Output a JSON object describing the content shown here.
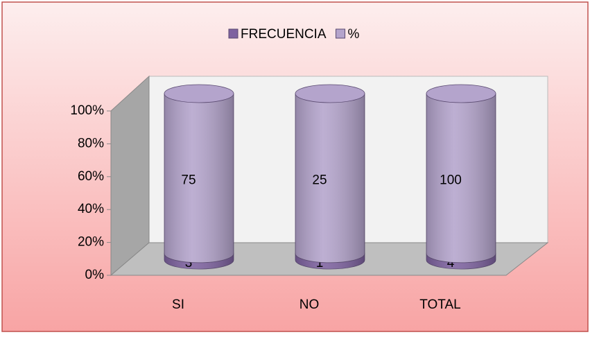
{
  "chart_data": {
    "type": "bar",
    "stacking": "percent",
    "categories": [
      "SI",
      "NO",
      "TOTAL"
    ],
    "series": [
      {
        "name": "FRECUENCIA",
        "color": "#7e62a0",
        "values": [
          3,
          1,
          4
        ]
      },
      {
        "name": "%",
        "color": "#b4a4cc",
        "values": [
          75,
          25,
          100
        ]
      }
    ],
    "ylim": [
      0,
      100
    ],
    "yticks": [
      {
        "value": 0,
        "label": "0%"
      },
      {
        "value": 20,
        "label": "20%"
      },
      {
        "value": 40,
        "label": "40%"
      },
      {
        "value": 60,
        "label": "60%"
      },
      {
        "value": 80,
        "label": "80%"
      },
      {
        "value": 100,
        "label": "100%"
      }
    ],
    "legend": "top"
  }
}
